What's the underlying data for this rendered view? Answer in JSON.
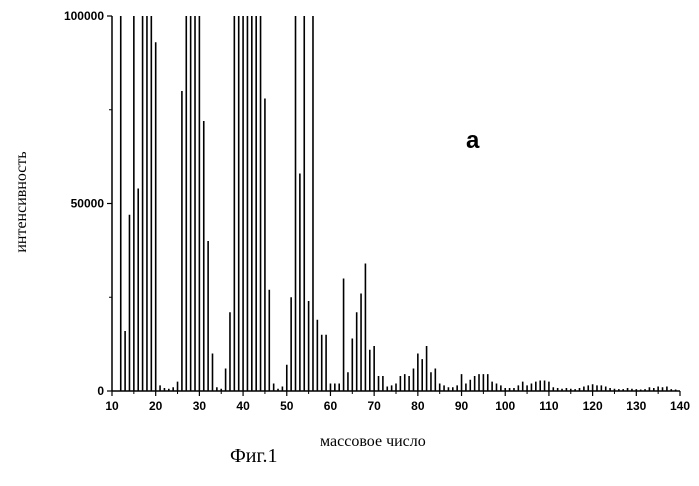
{
  "chart_data": {
    "type": "bar",
    "title": "",
    "xlabel": "массовое число",
    "ylabel": "интенсивность",
    "panel_label": "a",
    "caption": "Фиг.1",
    "xlim": [
      10,
      140
    ],
    "ylim": [
      0,
      100000
    ],
    "x_ticks": [
      10,
      20,
      30,
      40,
      50,
      60,
      70,
      80,
      90,
      100,
      110,
      120,
      130,
      140
    ],
    "y_ticks": [
      0,
      50000,
      100000
    ],
    "grid": false,
    "bar_color": "#000000",
    "points": [
      [
        12,
        100000
      ],
      [
        13,
        16000
      ],
      [
        14,
        47000
      ],
      [
        15,
        100000
      ],
      [
        16,
        54000
      ],
      [
        17,
        100000
      ],
      [
        18,
        100000
      ],
      [
        19,
        100000
      ],
      [
        20,
        93000
      ],
      [
        21,
        1500
      ],
      [
        22,
        800
      ],
      [
        23,
        600
      ],
      [
        24,
        1000
      ],
      [
        25,
        2500
      ],
      [
        26,
        80000
      ],
      [
        27,
        100000
      ],
      [
        28,
        100000
      ],
      [
        29,
        100000
      ],
      [
        30,
        100000
      ],
      [
        31,
        72000
      ],
      [
        32,
        40000
      ],
      [
        33,
        10000
      ],
      [
        34,
        1000
      ],
      [
        35,
        600
      ],
      [
        36,
        6000
      ],
      [
        37,
        21000
      ],
      [
        38,
        100000
      ],
      [
        39,
        100000
      ],
      [
        40,
        100000
      ],
      [
        41,
        100000
      ],
      [
        42,
        100000
      ],
      [
        43,
        100000
      ],
      [
        44,
        100000
      ],
      [
        45,
        78000
      ],
      [
        46,
        27000
      ],
      [
        47,
        2000
      ],
      [
        48,
        600
      ],
      [
        49,
        1200
      ],
      [
        50,
        7000
      ],
      [
        51,
        25000
      ],
      [
        52,
        100000
      ],
      [
        53,
        58000
      ],
      [
        54,
        100000
      ],
      [
        55,
        24000
      ],
      [
        56,
        100000
      ],
      [
        57,
        19000
      ],
      [
        58,
        15000
      ],
      [
        59,
        15000
      ],
      [
        60,
        2000
      ],
      [
        61,
        2000
      ],
      [
        62,
        2000
      ],
      [
        63,
        30000
      ],
      [
        64,
        5000
      ],
      [
        65,
        14000
      ],
      [
        66,
        21000
      ],
      [
        67,
        26000
      ],
      [
        68,
        34000
      ],
      [
        69,
        11000
      ],
      [
        70,
        12000
      ],
      [
        71,
        4000
      ],
      [
        72,
        4000
      ],
      [
        73,
        1200
      ],
      [
        74,
        1500
      ],
      [
        75,
        2000
      ],
      [
        76,
        4000
      ],
      [
        77,
        4500
      ],
      [
        78,
        4000
      ],
      [
        79,
        6000
      ],
      [
        80,
        10000
      ],
      [
        81,
        8500
      ],
      [
        82,
        12000
      ],
      [
        83,
        5000
      ],
      [
        84,
        6000
      ],
      [
        85,
        2000
      ],
      [
        86,
        1500
      ],
      [
        87,
        1000
      ],
      [
        88,
        1000
      ],
      [
        89,
        1500
      ],
      [
        90,
        4500
      ],
      [
        91,
        2000
      ],
      [
        92,
        3000
      ],
      [
        93,
        4000
      ],
      [
        94,
        4500
      ],
      [
        95,
        4500
      ],
      [
        96,
        4500
      ],
      [
        97,
        2500
      ],
      [
        98,
        2000
      ],
      [
        99,
        1500
      ],
      [
        100,
        800
      ],
      [
        101,
        800
      ],
      [
        102,
        800
      ],
      [
        103,
        1500
      ],
      [
        104,
        2500
      ],
      [
        105,
        1500
      ],
      [
        106,
        2000
      ],
      [
        107,
        2500
      ],
      [
        108,
        2800
      ],
      [
        109,
        2800
      ],
      [
        110,
        2500
      ],
      [
        111,
        1000
      ],
      [
        112,
        800
      ],
      [
        113,
        600
      ],
      [
        114,
        800
      ],
      [
        115,
        600
      ],
      [
        116,
        500
      ],
      [
        117,
        800
      ],
      [
        118,
        1200
      ],
      [
        119,
        1500
      ],
      [
        120,
        1800
      ],
      [
        121,
        1500
      ],
      [
        122,
        1500
      ],
      [
        123,
        1200
      ],
      [
        124,
        800
      ],
      [
        125,
        600
      ],
      [
        126,
        500
      ],
      [
        127,
        500
      ],
      [
        128,
        800
      ],
      [
        129,
        600
      ],
      [
        130,
        500
      ],
      [
        131,
        400
      ],
      [
        132,
        500
      ],
      [
        133,
        1000
      ],
      [
        134,
        800
      ],
      [
        135,
        1200
      ],
      [
        136,
        1000
      ],
      [
        137,
        1200
      ],
      [
        138,
        500
      ],
      [
        139,
        400
      ]
    ]
  }
}
